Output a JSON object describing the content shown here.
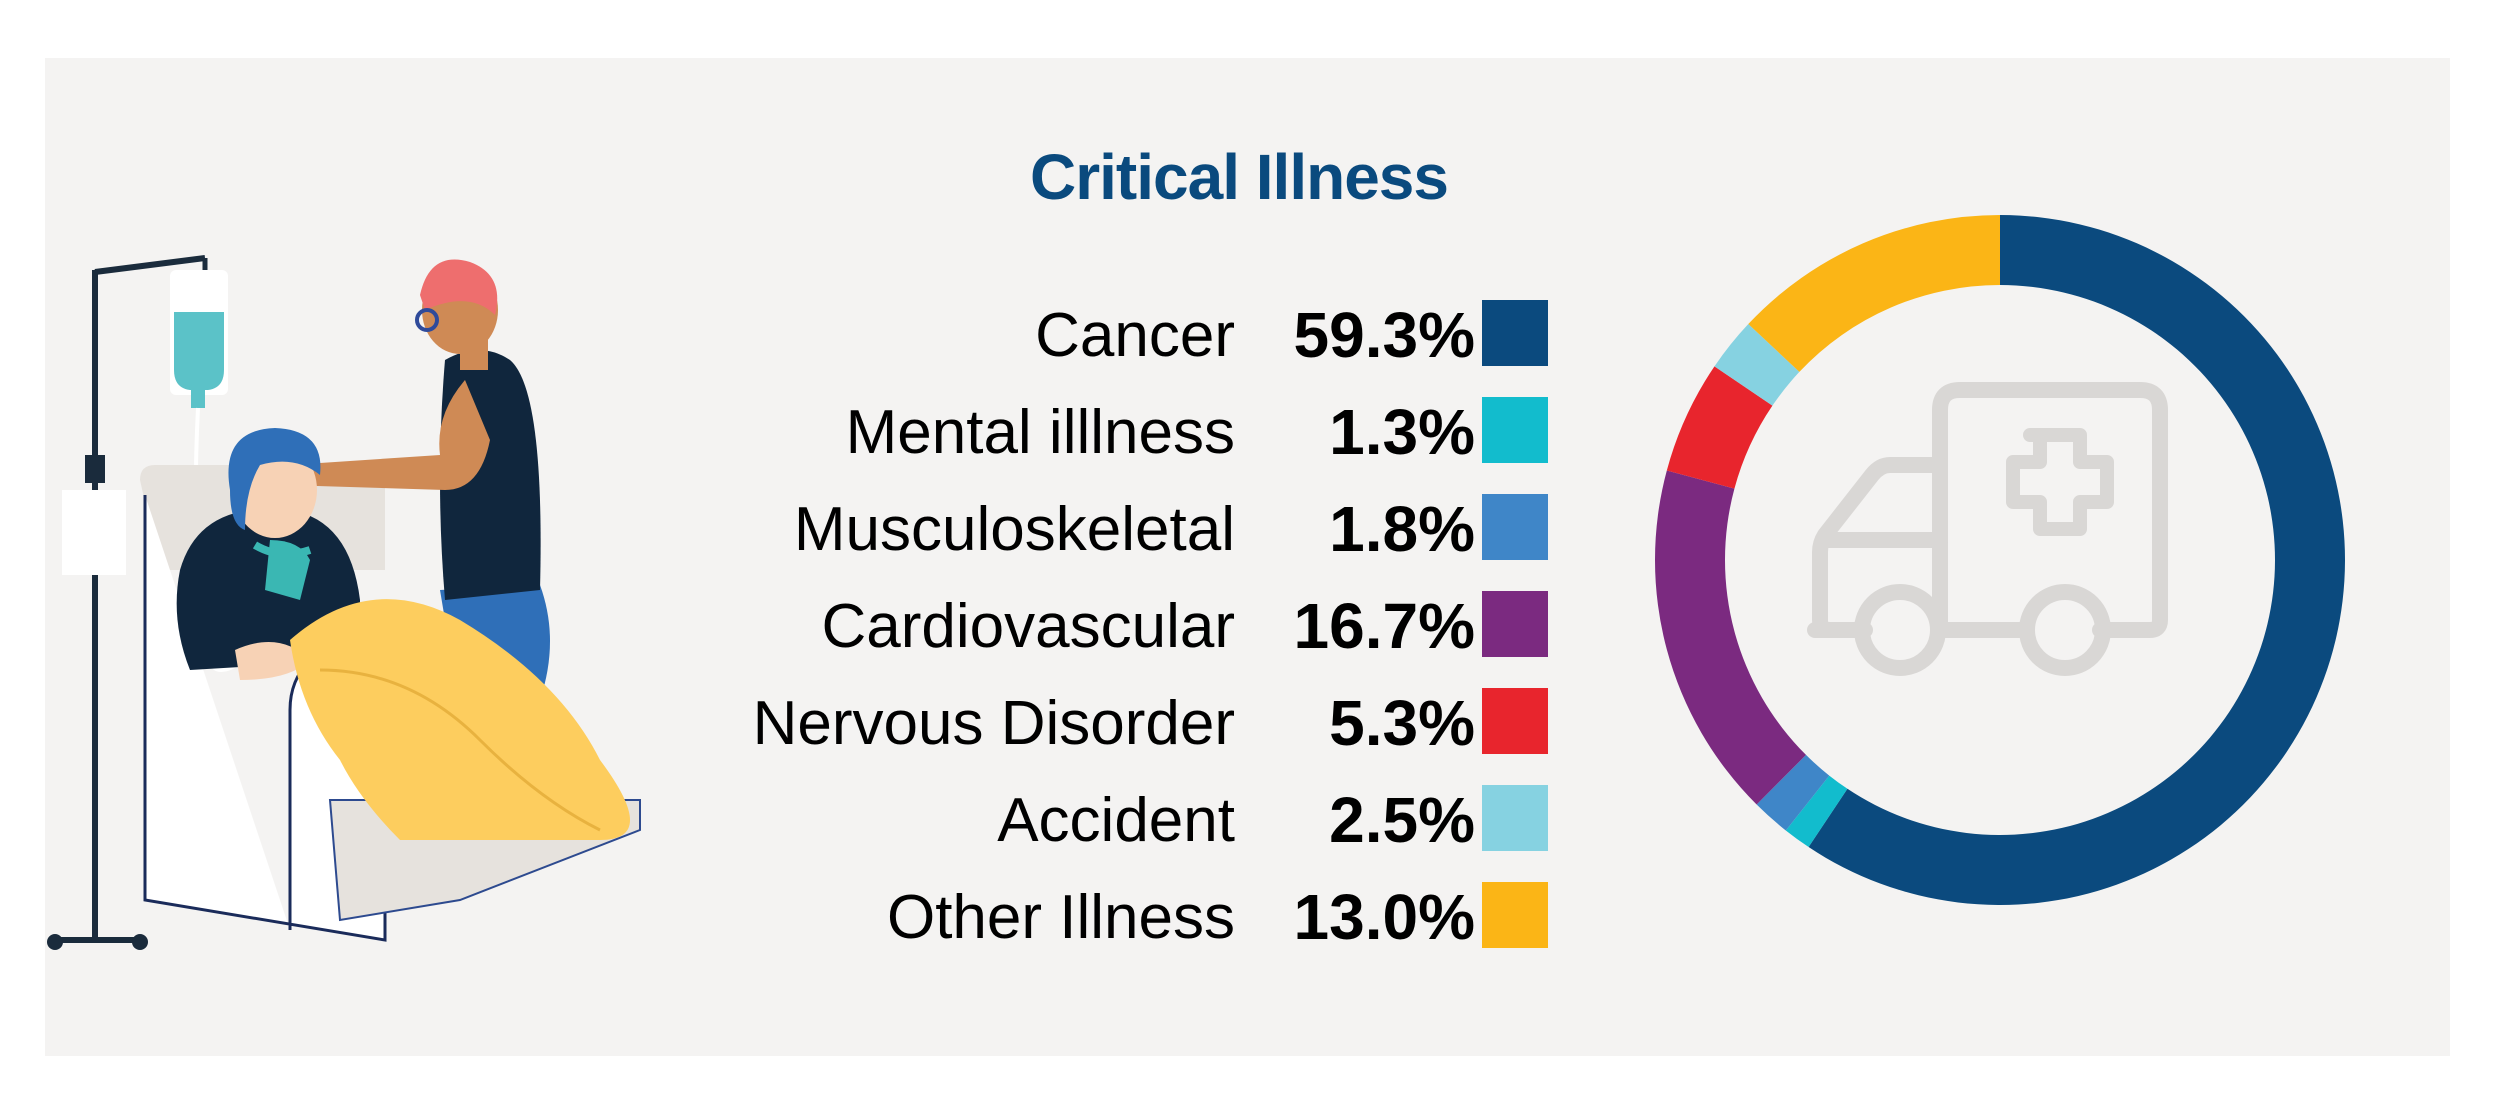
{
  "chart_data": {
    "type": "pie",
    "style": "donut",
    "title": "Critical Illness",
    "categories": [
      "Cancer",
      "Mental illlness",
      "Musculoskeletal",
      "Cardiovascular",
      "Nervous Disorder",
      "Accident",
      "Other Illness"
    ],
    "values": [
      59.3,
      1.3,
      1.8,
      16.7,
      5.3,
      2.5,
      13.0
    ],
    "value_labels": [
      "59.3%",
      "1.3%",
      "1.8%",
      "16.7%",
      "5.3%",
      "2.5%",
      "13.0%"
    ],
    "colors": [
      "#0b4a7e",
      "#12bccd",
      "#3f86c8",
      "#7b2a80",
      "#e8252d",
      "#86d2e1",
      "#fbb516"
    ],
    "legend_position": "left",
    "center_icon": "ambulance-icon"
  },
  "illustration": {
    "name": "patient-with-doctor-illustration"
  }
}
